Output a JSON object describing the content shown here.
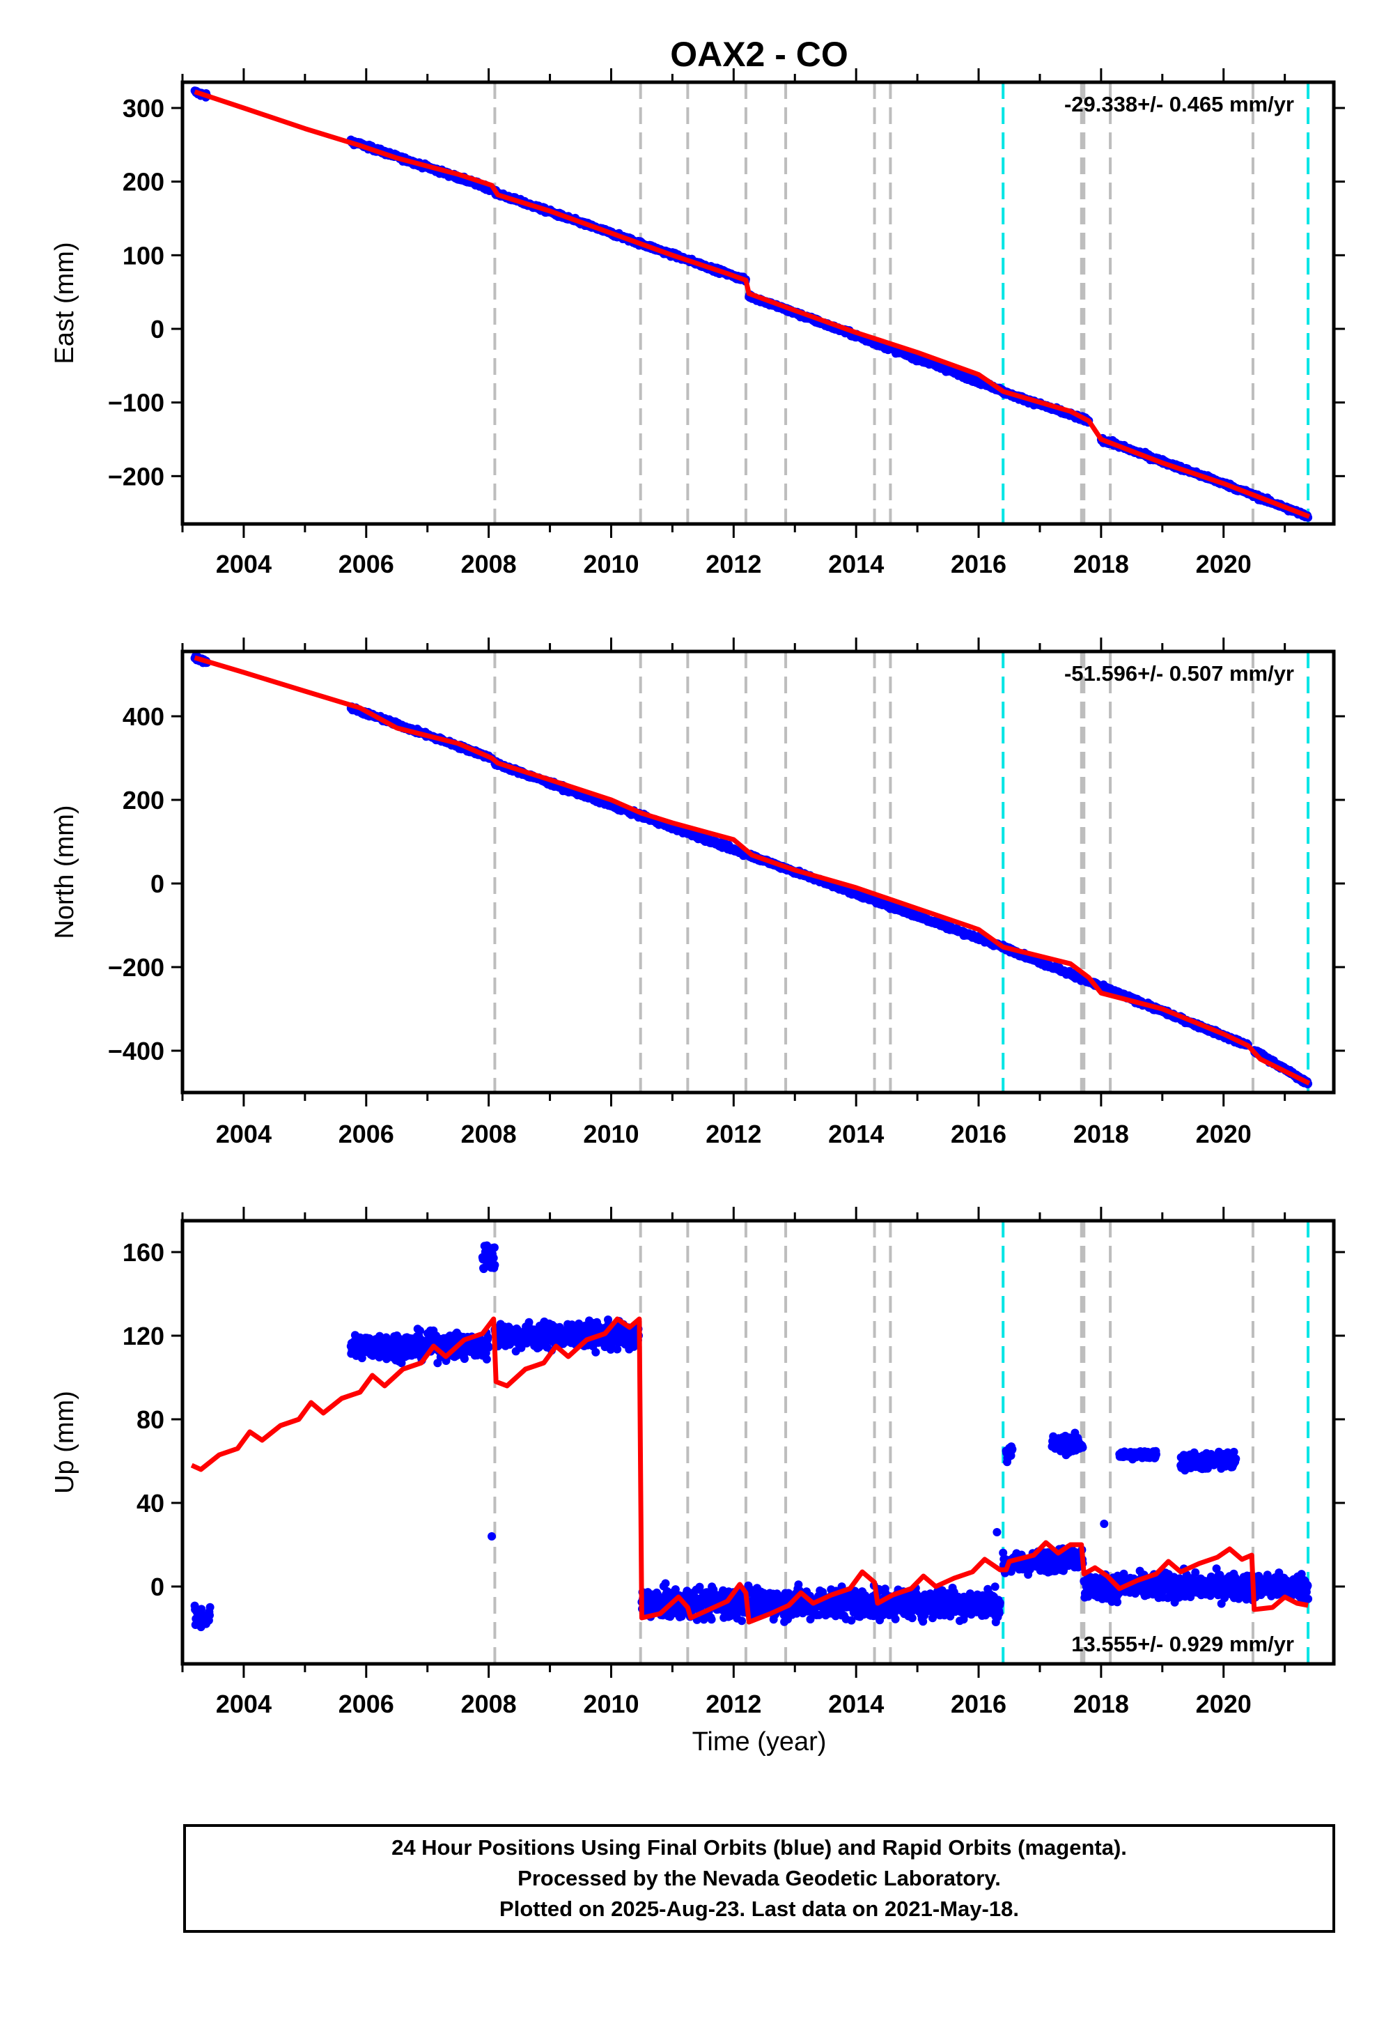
{
  "title": "OAX2 - CO",
  "x_axis_label": "Time (year)",
  "x_tick_labels": [
    "2004",
    "2006",
    "2008",
    "2010",
    "2012",
    "2014",
    "2016",
    "2018",
    "2020"
  ],
  "colors": {
    "data": "#0000ff",
    "model": "#ff0000",
    "equipment_change": "#bdbdbd",
    "other_event": "#00e5e5",
    "frame": "#000000"
  },
  "footer": {
    "line1": "24 Hour Positions Using Final Orbits (blue) and Rapid Orbits (magenta).",
    "line2": "Processed by the Nevada Geodetic Laboratory.",
    "line3": "Plotted on 2025-Aug-23. Last data on 2021-May-18."
  },
  "chart_data": [
    {
      "type": "scatter",
      "component": "east",
      "ylabel": "East (mm)",
      "xlim": [
        2003.0,
        2021.8
      ],
      "ylim": [
        -265,
        335
      ],
      "yticks": [
        300,
        200,
        100,
        0,
        -100,
        -200
      ],
      "ytick_labels": [
        "300",
        "200",
        "100",
        "0",
        "−100",
        "−200"
      ],
      "rate_text": "-29.338+/- 0.465 mm/yr",
      "rate_position": "top-right",
      "grey_event_lines": [
        2008.1,
        2010.48,
        2011.25,
        2012.2,
        2012.85,
        2014.3,
        2014.56,
        2017.68,
        2017.72,
        2018.15,
        2020.48
      ],
      "cyan_event_lines": [
        2016.4,
        2021.38
      ],
      "model_points": [
        [
          2003.2,
          322
        ],
        [
          2004.0,
          300
        ],
        [
          2005.0,
          272
        ],
        [
          2005.9,
          249
        ],
        [
          2006.5,
          232
        ],
        [
          2007.5,
          210
        ],
        [
          2008.05,
          195
        ],
        [
          2008.15,
          182
        ],
        [
          2009.0,
          160
        ],
        [
          2010.0,
          130
        ],
        [
          2011.0,
          100
        ],
        [
          2011.9,
          75
        ],
        [
          2012.2,
          66
        ],
        [
          2012.25,
          48
        ],
        [
          2013.0,
          25
        ],
        [
          2014.0,
          -5
        ],
        [
          2015.0,
          -32
        ],
        [
          2016.0,
          -62
        ],
        [
          2016.4,
          -85
        ],
        [
          2017.5,
          -112
        ],
        [
          2017.8,
          -125
        ],
        [
          2018.0,
          -150
        ],
        [
          2019.0,
          -182
        ],
        [
          2020.0,
          -210
        ],
        [
          2020.5,
          -226
        ],
        [
          2021.4,
          -255
        ]
      ],
      "data_segments": [
        {
          "x": [
            2003.2,
            2003.4
          ],
          "y": [
            322,
            316
          ]
        },
        {
          "x": [
            2005.75,
            2008.05
          ],
          "y": [
            255,
            190
          ]
        },
        {
          "x": [
            2008.1,
            2012.2
          ],
          "y": [
            185,
            66
          ]
        },
        {
          "x": [
            2012.25,
            2016.4
          ],
          "y": [
            45,
            -84
          ]
        },
        {
          "x": [
            2016.4,
            2017.8
          ],
          "y": [
            -86,
            -125
          ]
        },
        {
          "x": [
            2018.0,
            2020.0
          ],
          "y": [
            -150,
            -210
          ]
        },
        {
          "x": [
            2020.0,
            2021.38
          ],
          "y": [
            -210,
            -255
          ]
        }
      ],
      "data_scatter_mm": 3
    },
    {
      "type": "scatter",
      "component": "north",
      "ylabel": "North (mm)",
      "xlim": [
        2003.0,
        2021.8
      ],
      "ylim": [
        -500,
        555
      ],
      "yticks": [
        400,
        200,
        0,
        -200,
        -400
      ],
      "ytick_labels": [
        "400",
        "200",
        "0",
        "−200",
        "−400"
      ],
      "rate_text": "-51.596+/- 0.507 mm/yr",
      "rate_position": "top-right",
      "grey_event_lines": [
        2008.1,
        2010.48,
        2011.25,
        2012.2,
        2012.85,
        2014.3,
        2014.56,
        2017.68,
        2017.72,
        2018.15,
        2020.48
      ],
      "cyan_event_lines": [
        2016.4,
        2021.38
      ],
      "model_points": [
        [
          2003.2,
          540
        ],
        [
          2004.0,
          505
        ],
        [
          2005.0,
          460
        ],
        [
          2005.9,
          420
        ],
        [
          2006.5,
          372
        ],
        [
          2007.5,
          335
        ],
        [
          2008.05,
          300
        ],
        [
          2008.15,
          288
        ],
        [
          2009.0,
          248
        ],
        [
          2010.0,
          200
        ],
        [
          2010.5,
          168
        ],
        [
          2011.0,
          145
        ],
        [
          2012.0,
          105
        ],
        [
          2012.3,
          68
        ],
        [
          2013.0,
          32
        ],
        [
          2014.0,
          -10
        ],
        [
          2015.0,
          -60
        ],
        [
          2016.0,
          -110
        ],
        [
          2016.4,
          -152
        ],
        [
          2017.5,
          -192
        ],
        [
          2017.8,
          -225
        ],
        [
          2018.0,
          -262
        ],
        [
          2019.0,
          -300
        ],
        [
          2020.0,
          -360
        ],
        [
          2020.4,
          -388
        ],
        [
          2020.6,
          -420
        ],
        [
          2021.4,
          -478
        ]
      ],
      "data_segments": [
        {
          "x": [
            2003.2,
            2003.4
          ],
          "y": [
            540,
            530
          ]
        },
        {
          "x": [
            2005.75,
            2008.05
          ],
          "y": [
            420,
            300
          ]
        },
        {
          "x": [
            2008.1,
            2016.4
          ],
          "y": [
            288,
            -152
          ]
        },
        {
          "x": [
            2016.4,
            2020.4
          ],
          "y": [
            -152,
            -388
          ]
        },
        {
          "x": [
            2020.5,
            2021.38
          ],
          "y": [
            -400,
            -478
          ]
        }
      ],
      "data_scatter_mm": 5
    },
    {
      "type": "scatter",
      "component": "up",
      "ylabel": "Up (mm)",
      "xlim": [
        2003.0,
        2021.8
      ],
      "ylim": [
        -37,
        175
      ],
      "yticks": [
        160,
        120,
        80,
        40,
        0
      ],
      "ytick_labels": [
        "160",
        "120",
        "80",
        "40",
        "0"
      ],
      "rate_text": "13.555+/- 0.929 mm/yr",
      "rate_position": "bottom-right",
      "grey_event_lines": [
        2008.1,
        2010.48,
        2011.25,
        2012.2,
        2012.85,
        2014.3,
        2014.56,
        2017.68,
        2017.72,
        2018.15,
        2020.48
      ],
      "cyan_event_lines": [
        2016.4,
        2021.38
      ],
      "model_points": [
        [
          2003.15,
          58
        ],
        [
          2003.3,
          56
        ],
        [
          2003.6,
          63
        ],
        [
          2003.9,
          66
        ],
        [
          2004.1,
          74
        ],
        [
          2004.3,
          70
        ],
        [
          2004.6,
          77
        ],
        [
          2004.9,
          80
        ],
        [
          2005.1,
          88
        ],
        [
          2005.3,
          83
        ],
        [
          2005.6,
          90
        ],
        [
          2005.9,
          93
        ],
        [
          2006.1,
          101
        ],
        [
          2006.3,
          96
        ],
        [
          2006.6,
          104
        ],
        [
          2006.9,
          107
        ],
        [
          2007.1,
          115
        ],
        [
          2007.3,
          110
        ],
        [
          2007.6,
          118
        ],
        [
          2007.9,
          121
        ],
        [
          2008.08,
          128
        ],
        [
          2008.12,
          98
        ],
        [
          2008.3,
          96
        ],
        [
          2008.6,
          104
        ],
        [
          2008.9,
          107
        ],
        [
          2009.1,
          115
        ],
        [
          2009.3,
          110
        ],
        [
          2009.6,
          118
        ],
        [
          2009.9,
          121
        ],
        [
          2010.1,
          128
        ],
        [
          2010.3,
          124
        ],
        [
          2010.46,
          128
        ],
        [
          2010.5,
          -15
        ],
        [
          2010.8,
          -13
        ],
        [
          2011.1,
          -5
        ],
        [
          2011.25,
          -10
        ],
        [
          2011.3,
          -15
        ],
        [
          2011.6,
          -11
        ],
        [
          2011.9,
          -7
        ],
        [
          2012.1,
          1
        ],
        [
          2012.2,
          -3
        ],
        [
          2012.25,
          -17
        ],
        [
          2012.6,
          -13
        ],
        [
          2012.9,
          -9
        ],
        [
          2013.1,
          -3
        ],
        [
          2013.3,
          -8
        ],
        [
          2013.6,
          -4
        ],
        [
          2013.9,
          -1
        ],
        [
          2014.1,
          7
        ],
        [
          2014.3,
          2
        ],
        [
          2014.35,
          -8
        ],
        [
          2014.6,
          -4
        ],
        [
          2014.9,
          -1
        ],
        [
          2015.1,
          5
        ],
        [
          2015.3,
          0
        ],
        [
          2015.6,
          4
        ],
        [
          2015.9,
          7
        ],
        [
          2016.1,
          13
        ],
        [
          2016.35,
          8
        ],
        [
          2016.45,
          8
        ],
        [
          2016.5,
          12
        ],
        [
          2016.9,
          15
        ],
        [
          2017.1,
          21
        ],
        [
          2017.3,
          16
        ],
        [
          2017.5,
          20
        ],
        [
          2017.68,
          20
        ],
        [
          2017.72,
          6
        ],
        [
          2017.9,
          9
        ],
        [
          2018.1,
          5
        ],
        [
          2018.3,
          -1
        ],
        [
          2018.6,
          3
        ],
        [
          2018.9,
          6
        ],
        [
          2019.1,
          12
        ],
        [
          2019.3,
          7
        ],
        [
          2019.6,
          11
        ],
        [
          2019.9,
          14
        ],
        [
          2020.1,
          18
        ],
        [
          2020.3,
          13
        ],
        [
          2020.46,
          15
        ],
        [
          2020.5,
          -11
        ],
        [
          2020.8,
          -10
        ],
        [
          2021.0,
          -5
        ],
        [
          2021.2,
          -8
        ],
        [
          2021.38,
          -9
        ]
      ],
      "data_segments": [
        {
          "x": [
            2003.2,
            2003.45
          ],
          "y": [
            -15,
            -15
          ],
          "spread": 5
        },
        {
          "x": [
            2005.75,
            2008.0
          ],
          "y": [
            115,
            115
          ],
          "spread": 6
        },
        {
          "x": [
            2007.9,
            2008.1
          ],
          "y": [
            158,
            158
          ],
          "spread": 7
        },
        {
          "x": [
            2008.1,
            2010.45
          ],
          "y": [
            120,
            120
          ],
          "spread": 6
        },
        {
          "x": [
            2010.5,
            2016.35
          ],
          "y": [
            -8,
            -8
          ],
          "spread": 7
        },
        {
          "x": [
            2016.4,
            2017.7
          ],
          "y": [
            10,
            14
          ],
          "spread": 5
        },
        {
          "x": [
            2017.72,
            2021.38
          ],
          "y": [
            0,
            0
          ],
          "spread": 6
        },
        {
          "x": [
            2016.45,
            2016.55
          ],
          "y": [
            64,
            64
          ],
          "spread": 5
        },
        {
          "x": [
            2017.2,
            2017.7
          ],
          "y": [
            68,
            68
          ],
          "spread": 4
        },
        {
          "x": [
            2018.3,
            2018.9
          ],
          "y": [
            63,
            63
          ],
          "spread": 2
        },
        {
          "x": [
            2019.3,
            2020.2
          ],
          "y": [
            60,
            60
          ],
          "spread": 4
        }
      ],
      "outliers": [
        [
          2008.05,
          24
        ],
        [
          2016.3,
          26
        ],
        [
          2018.05,
          30
        ]
      ]
    }
  ]
}
